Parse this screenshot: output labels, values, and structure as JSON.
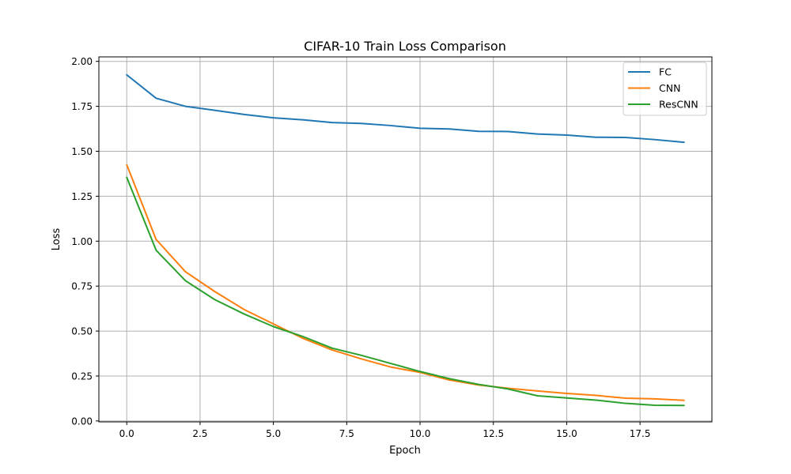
{
  "chart_data": {
    "type": "line",
    "title": "CIFAR-10 Train Loss Comparison",
    "xlabel": "Epoch",
    "ylabel": "Loss",
    "xlim": [
      -0.95,
      19.95
    ],
    "ylim": [
      -0.005,
      2.025
    ],
    "xticks": [
      0.0,
      2.5,
      5.0,
      7.5,
      10.0,
      12.5,
      15.0,
      17.5
    ],
    "xtick_labels": [
      "0.0",
      "2.5",
      "5.0",
      "7.5",
      "10.0",
      "12.5",
      "15.0",
      "17.5"
    ],
    "yticks": [
      0.0,
      0.25,
      0.5,
      0.75,
      1.0,
      1.25,
      1.5,
      1.75,
      2.0
    ],
    "ytick_labels": [
      "0.00",
      "0.25",
      "0.50",
      "0.75",
      "1.00",
      "1.25",
      "1.50",
      "1.75",
      "2.00"
    ],
    "grid": true,
    "legend_position": "top-right",
    "x": [
      0,
      1,
      2,
      3,
      4,
      5,
      6,
      7,
      8,
      9,
      10,
      11,
      12,
      13,
      14,
      15,
      16,
      17,
      18,
      19
    ],
    "series": [
      {
        "name": "FC",
        "color": "#1f77b4",
        "values": [
          1.925,
          1.795,
          1.75,
          1.728,
          1.705,
          1.686,
          1.675,
          1.66,
          1.655,
          1.643,
          1.628,
          1.624,
          1.611,
          1.61,
          1.596,
          1.59,
          1.578,
          1.577,
          1.565,
          1.55
        ]
      },
      {
        "name": "CNN",
        "color": "#ff7f0e",
        "values": [
          1.425,
          1.01,
          0.83,
          0.72,
          0.62,
          0.54,
          0.46,
          0.395,
          0.345,
          0.3,
          0.27,
          0.228,
          0.2,
          0.182,
          0.167,
          0.153,
          0.142,
          0.127,
          0.123,
          0.115
        ]
      },
      {
        "name": "ResCNN",
        "color": "#2ca02c",
        "values": [
          1.355,
          0.95,
          0.78,
          0.675,
          0.595,
          0.525,
          0.47,
          0.405,
          0.365,
          0.32,
          0.275,
          0.235,
          0.203,
          0.178,
          0.14,
          0.128,
          0.116,
          0.098,
          0.087,
          0.086
        ]
      }
    ]
  }
}
